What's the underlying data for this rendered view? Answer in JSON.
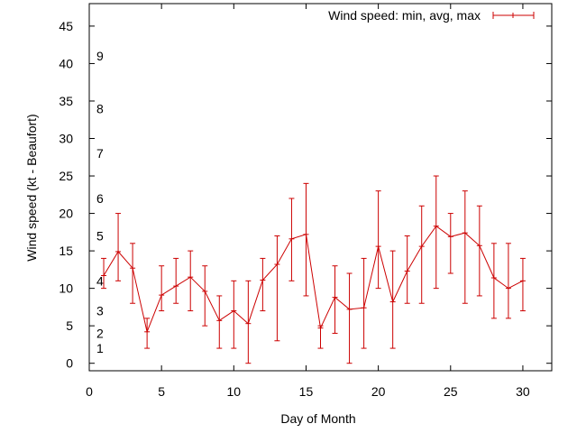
{
  "chart_data": {
    "type": "line",
    "title": "",
    "xlabel": "Day of Month",
    "ylabel": "Wind speed (kt - Beaufort)",
    "xlim": [
      0,
      32
    ],
    "ylim": [
      -1,
      48
    ],
    "x_ticks": [
      0,
      5,
      10,
      15,
      20,
      25,
      30
    ],
    "y_ticks": [
      0,
      5,
      10,
      15,
      20,
      25,
      30,
      35,
      40,
      45
    ],
    "grid": false,
    "legend_position": "top-right",
    "series": [
      {
        "name": "Wind speed: min, avg, max",
        "color": "#cc0000",
        "x": [
          1,
          2,
          3,
          4,
          5,
          6,
          7,
          8,
          9,
          10,
          11,
          12,
          13,
          14,
          15,
          16,
          17,
          18,
          19,
          20,
          21,
          22,
          23,
          24,
          25,
          26,
          27,
          28,
          29,
          30
        ],
        "avg": [
          11.7,
          14.9,
          12.7,
          4.2,
          9.1,
          10.3,
          11.5,
          9.6,
          5.7,
          7.0,
          5.3,
          11.1,
          13.2,
          16.6,
          17.2,
          4.7,
          8.8,
          7.2,
          7.4,
          15.6,
          8.2,
          12.3,
          15.6,
          18.3,
          16.9,
          17.4,
          15.7,
          11.4,
          10.0,
          11.0
        ],
        "min": [
          10,
          11,
          8,
          2,
          7,
          8,
          7,
          5,
          2,
          2,
          0,
          7,
          3,
          11,
          9,
          2,
          4,
          0,
          2,
          10,
          2,
          8,
          8,
          10,
          12,
          8,
          9,
          6,
          6,
          7
        ],
        "max": [
          14,
          20,
          16,
          6,
          13,
          14,
          15,
          13,
          9,
          11,
          11,
          14,
          17,
          22,
          24,
          5,
          13,
          12,
          14,
          23,
          15,
          17,
          21,
          25,
          20,
          23,
          21,
          16,
          16,
          14
        ]
      }
    ],
    "beaufort_labels": [
      {
        "label": "1",
        "value": 2
      },
      {
        "label": "2",
        "value": 4
      },
      {
        "label": "3",
        "value": 7
      },
      {
        "label": "4",
        "value": 11
      },
      {
        "label": "5",
        "value": 17
      },
      {
        "label": "6",
        "value": 22
      },
      {
        "label": "7",
        "value": 28
      },
      {
        "label": "8",
        "value": 34
      },
      {
        "label": "9",
        "value": 41
      }
    ]
  }
}
